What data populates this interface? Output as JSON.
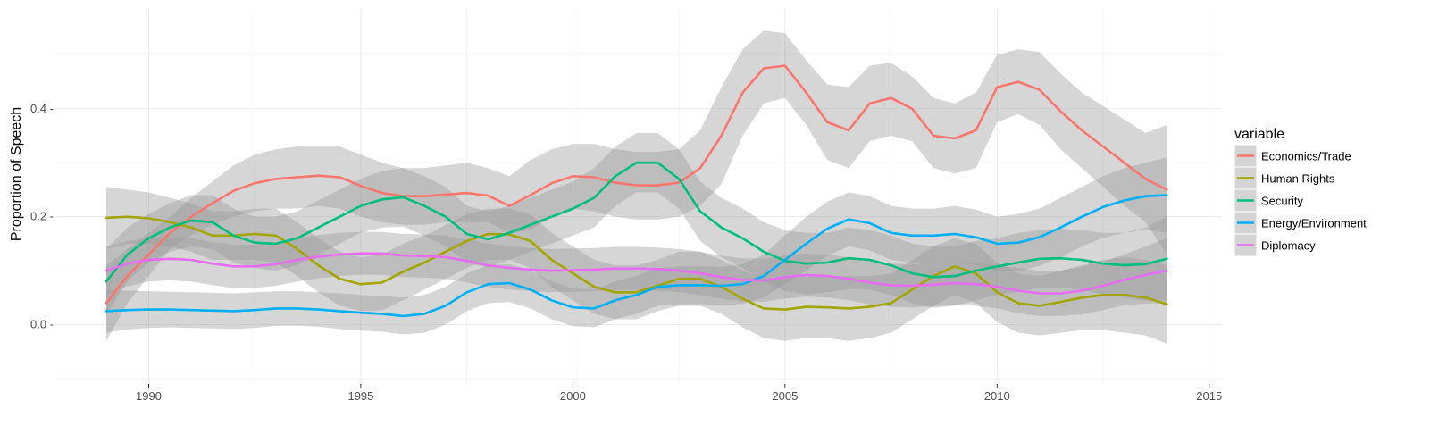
{
  "chart_data": {
    "type": "line",
    "title": "",
    "xlabel": "",
    "ylabel": "Proportion of Speech",
    "xlim": [
      1987.8,
      2015.3
    ],
    "ylim": [
      -0.11,
      0.585
    ],
    "x_ticks": [
      1990,
      1995,
      2000,
      2005,
      2010,
      2015
    ],
    "x_tick_labels": [
      "1990",
      "1995",
      "2000",
      "2005",
      "2010",
      "2015"
    ],
    "y_ticks": [
      0.0,
      0.2,
      0.4
    ],
    "y_tick_labels": [
      "0.0 -",
      "0.2 -",
      "0.4 -"
    ],
    "grid": true,
    "legend": {
      "title": "variable",
      "position": "right"
    },
    "series": [
      {
        "name": "Economics/Trade",
        "color": "#F8766D",
        "x": [
          1989,
          1989.5,
          1990,
          1990.5,
          1991,
          1991.5,
          1992,
          1992.5,
          1993,
          1993.5,
          1994,
          1994.5,
          1995,
          1995.5,
          1996,
          1996.5,
          1997,
          1997.5,
          1998,
          1998.5,
          1999,
          1999.5,
          2000,
          2000.5,
          2001,
          2001.5,
          2002,
          2002.5,
          2003,
          2003.5,
          2004,
          2004.5,
          2005,
          2005.5,
          2006,
          2006.5,
          2007,
          2007.5,
          2008,
          2008.5,
          2009,
          2009.5,
          2010,
          2010.5,
          2011,
          2011.5,
          2012,
          2012.5,
          2013,
          2013.5,
          2014
        ],
        "values": [
          0.04,
          0.09,
          0.13,
          0.17,
          0.2,
          0.225,
          0.248,
          0.262,
          0.27,
          0.273,
          0.276,
          0.273,
          0.257,
          0.244,
          0.238,
          0.238,
          0.241,
          0.244,
          0.239,
          0.22,
          0.24,
          0.262,
          0.275,
          0.273,
          0.263,
          0.258,
          0.258,
          0.263,
          0.29,
          0.35,
          0.43,
          0.475,
          0.48,
          0.43,
          0.375,
          0.36,
          0.41,
          0.42,
          0.4,
          0.35,
          0.345,
          0.36,
          0.44,
          0.45,
          0.435,
          0.395,
          0.36,
          0.33,
          0.3,
          0.27,
          0.25
        ],
        "upper": [
          0.11,
          0.14,
          0.17,
          0.2,
          0.235,
          0.265,
          0.295,
          0.315,
          0.325,
          0.33,
          0.33,
          0.33,
          0.315,
          0.3,
          0.29,
          0.29,
          0.295,
          0.3,
          0.29,
          0.275,
          0.305,
          0.325,
          0.335,
          0.335,
          0.325,
          0.32,
          0.32,
          0.325,
          0.36,
          0.44,
          0.51,
          0.545,
          0.54,
          0.49,
          0.445,
          0.44,
          0.48,
          0.485,
          0.46,
          0.42,
          0.41,
          0.43,
          0.5,
          0.51,
          0.505,
          0.465,
          0.43,
          0.405,
          0.38,
          0.355,
          0.37
        ],
        "lower": [
          -0.03,
          0.04,
          0.09,
          0.14,
          0.165,
          0.185,
          0.2,
          0.21,
          0.215,
          0.215,
          0.22,
          0.215,
          0.2,
          0.19,
          0.185,
          0.185,
          0.19,
          0.19,
          0.19,
          0.17,
          0.175,
          0.2,
          0.215,
          0.21,
          0.2,
          0.195,
          0.195,
          0.2,
          0.22,
          0.26,
          0.35,
          0.41,
          0.42,
          0.37,
          0.305,
          0.29,
          0.34,
          0.35,
          0.34,
          0.29,
          0.28,
          0.29,
          0.375,
          0.39,
          0.37,
          0.325,
          0.29,
          0.255,
          0.22,
          0.19,
          0.13
        ]
      },
      {
        "name": "Human Rights",
        "color": "#A3A500",
        "x": [
          1989,
          1989.5,
          1990,
          1990.5,
          1991,
          1991.5,
          1992,
          1992.5,
          1993,
          1993.5,
          1994,
          1994.5,
          1995,
          1995.5,
          1996,
          1996.5,
          1997,
          1997.5,
          1998,
          1998.5,
          1999,
          1999.5,
          2000,
          2000.5,
          2001,
          2001.5,
          2002,
          2002.5,
          2003,
          2003.5,
          2004,
          2004.5,
          2005,
          2005.5,
          2006,
          2006.5,
          2007,
          2007.5,
          2008,
          2008.5,
          2009,
          2009.5,
          2010,
          2010.5,
          2011,
          2011.5,
          2012,
          2012.5,
          2013,
          2013.5,
          2014
        ],
        "values": [
          0.198,
          0.2,
          0.197,
          0.19,
          0.18,
          0.165,
          0.165,
          0.168,
          0.165,
          0.14,
          0.11,
          0.085,
          0.075,
          0.078,
          0.098,
          0.115,
          0.135,
          0.155,
          0.168,
          0.167,
          0.155,
          0.12,
          0.095,
          0.07,
          0.06,
          0.06,
          0.072,
          0.085,
          0.085,
          0.07,
          0.048,
          0.03,
          0.028,
          0.033,
          0.032,
          0.03,
          0.033,
          0.04,
          0.065,
          0.09,
          0.108,
          0.095,
          0.06,
          0.04,
          0.035,
          0.042,
          0.05,
          0.055,
          0.055,
          0.05,
          0.038
        ],
        "upper": [
          0.255,
          0.25,
          0.245,
          0.235,
          0.225,
          0.21,
          0.21,
          0.215,
          0.215,
          0.19,
          0.16,
          0.135,
          0.125,
          0.13,
          0.15,
          0.165,
          0.185,
          0.205,
          0.215,
          0.215,
          0.205,
          0.17,
          0.145,
          0.12,
          0.11,
          0.11,
          0.12,
          0.135,
          0.135,
          0.12,
          0.1,
          0.085,
          0.085,
          0.09,
          0.09,
          0.09,
          0.09,
          0.095,
          0.12,
          0.145,
          0.16,
          0.15,
          0.115,
          0.095,
          0.09,
          0.1,
          0.11,
          0.12,
          0.125,
          0.12,
          0.11
        ],
        "lower": [
          0.14,
          0.15,
          0.15,
          0.145,
          0.135,
          0.12,
          0.12,
          0.12,
          0.115,
          0.09,
          0.06,
          0.035,
          0.025,
          0.026,
          0.045,
          0.065,
          0.085,
          0.105,
          0.12,
          0.12,
          0.105,
          0.07,
          0.045,
          0.02,
          0.01,
          0.01,
          0.025,
          0.035,
          0.035,
          0.02,
          -0.005,
          -0.025,
          -0.03,
          -0.025,
          -0.025,
          -0.03,
          -0.025,
          -0.015,
          0.01,
          0.035,
          0.055,
          0.04,
          0.005,
          -0.015,
          -0.02,
          -0.015,
          -0.01,
          -0.01,
          -0.015,
          -0.02,
          -0.035
        ]
      },
      {
        "name": "Security",
        "color": "#00BF7D",
        "x": [
          1989,
          1989.5,
          1990,
          1990.5,
          1991,
          1991.5,
          1992,
          1992.5,
          1993,
          1993.5,
          1994,
          1994.5,
          1995,
          1995.5,
          1996,
          1996.5,
          1997,
          1997.5,
          1998,
          1998.5,
          1999,
          1999.5,
          2000,
          2000.5,
          2001,
          2001.5,
          2002,
          2002.5,
          2003,
          2003.5,
          2004,
          2004.5,
          2005,
          2005.5,
          2006,
          2006.5,
          2007,
          2007.5,
          2008,
          2008.5,
          2009,
          2009.5,
          2010,
          2010.5,
          2011,
          2011.5,
          2012,
          2012.5,
          2013,
          2013.5,
          2014
        ],
        "values": [
          0.08,
          0.13,
          0.16,
          0.18,
          0.193,
          0.19,
          0.165,
          0.152,
          0.15,
          0.16,
          0.18,
          0.2,
          0.22,
          0.232,
          0.236,
          0.22,
          0.2,
          0.168,
          0.158,
          0.17,
          0.185,
          0.2,
          0.215,
          0.235,
          0.275,
          0.3,
          0.3,
          0.27,
          0.21,
          0.18,
          0.16,
          0.135,
          0.118,
          0.113,
          0.115,
          0.123,
          0.12,
          0.11,
          0.095,
          0.088,
          0.09,
          0.1,
          0.108,
          0.115,
          0.122,
          0.123,
          0.12,
          0.113,
          0.11,
          0.112,
          0.122
        ],
        "upper": [
          0.14,
          0.18,
          0.205,
          0.225,
          0.24,
          0.24,
          0.215,
          0.2,
          0.2,
          0.21,
          0.23,
          0.25,
          0.27,
          0.285,
          0.29,
          0.275,
          0.255,
          0.22,
          0.21,
          0.22,
          0.235,
          0.25,
          0.265,
          0.29,
          0.33,
          0.355,
          0.355,
          0.325,
          0.265,
          0.235,
          0.215,
          0.19,
          0.175,
          0.17,
          0.17,
          0.18,
          0.175,
          0.165,
          0.15,
          0.145,
          0.145,
          0.155,
          0.16,
          0.17,
          0.175,
          0.178,
          0.175,
          0.17,
          0.17,
          0.18,
          0.2
        ],
        "lower": [
          0.02,
          0.08,
          0.115,
          0.135,
          0.145,
          0.14,
          0.115,
          0.105,
          0.1,
          0.11,
          0.13,
          0.15,
          0.17,
          0.18,
          0.182,
          0.165,
          0.145,
          0.115,
          0.105,
          0.12,
          0.135,
          0.15,
          0.165,
          0.18,
          0.22,
          0.245,
          0.245,
          0.215,
          0.155,
          0.125,
          0.105,
          0.08,
          0.062,
          0.056,
          0.06,
          0.066,
          0.065,
          0.055,
          0.04,
          0.031,
          0.035,
          0.045,
          0.056,
          0.06,
          0.069,
          0.068,
          0.065,
          0.056,
          0.05,
          0.044,
          0.044
        ]
      },
      {
        "name": "Energy/Environment",
        "color": "#00B0F6",
        "x": [
          1989,
          1989.5,
          1990,
          1990.5,
          1991,
          1991.5,
          1992,
          1992.5,
          1993,
          1993.5,
          1994,
          1994.5,
          1995,
          1995.5,
          1996,
          1996.5,
          1997,
          1997.5,
          1998,
          1998.5,
          1999,
          1999.5,
          2000,
          2000.5,
          2001,
          2001.5,
          2002,
          2002.5,
          2003,
          2003.5,
          2004,
          2004.5,
          2005,
          2005.5,
          2006,
          2006.5,
          2007,
          2007.5,
          2008,
          2008.5,
          2009,
          2009.5,
          2010,
          2010.5,
          2011,
          2011.5,
          2012,
          2012.5,
          2013,
          2013.5,
          2014
        ],
        "values": [
          0.025,
          0.027,
          0.028,
          0.028,
          0.027,
          0.026,
          0.025,
          0.027,
          0.03,
          0.03,
          0.028,
          0.025,
          0.022,
          0.02,
          0.016,
          0.02,
          0.035,
          0.06,
          0.075,
          0.077,
          0.065,
          0.045,
          0.032,
          0.03,
          0.045,
          0.055,
          0.07,
          0.073,
          0.073,
          0.072,
          0.075,
          0.09,
          0.12,
          0.15,
          0.178,
          0.195,
          0.188,
          0.17,
          0.165,
          0.165,
          0.168,
          0.162,
          0.15,
          0.152,
          0.162,
          0.18,
          0.2,
          0.218,
          0.23,
          0.238,
          0.24
        ],
        "upper": [
          0.065,
          0.063,
          0.062,
          0.061,
          0.06,
          0.059,
          0.058,
          0.06,
          0.062,
          0.062,
          0.06,
          0.058,
          0.055,
          0.053,
          0.05,
          0.055,
          0.07,
          0.095,
          0.11,
          0.112,
          0.1,
          0.08,
          0.067,
          0.065,
          0.08,
          0.09,
          0.105,
          0.108,
          0.108,
          0.107,
          0.112,
          0.13,
          0.165,
          0.2,
          0.228,
          0.245,
          0.238,
          0.22,
          0.215,
          0.215,
          0.22,
          0.213,
          0.2,
          0.205,
          0.215,
          0.235,
          0.255,
          0.275,
          0.29,
          0.3,
          0.31
        ],
        "lower": [
          -0.015,
          -0.009,
          -0.006,
          -0.005,
          -0.006,
          -0.007,
          -0.008,
          -0.006,
          -0.002,
          -0.002,
          -0.004,
          -0.008,
          -0.011,
          -0.013,
          -0.018,
          -0.015,
          0,
          0.025,
          0.04,
          0.042,
          0.03,
          0.01,
          -0.003,
          -0.005,
          0.01,
          0.02,
          0.035,
          0.038,
          0.038,
          0.037,
          0.038,
          0.05,
          0.075,
          0.1,
          0.128,
          0.145,
          0.138,
          0.12,
          0.115,
          0.115,
          0.116,
          0.111,
          0.1,
          0.099,
          0.109,
          0.125,
          0.145,
          0.161,
          0.17,
          0.176,
          0.17
        ]
      },
      {
        "name": "Diplomacy",
        "color": "#E76BF3",
        "x": [
          1989,
          1989.5,
          1990,
          1990.5,
          1991,
          1991.5,
          1992,
          1992.5,
          1993,
          1993.5,
          1994,
          1994.5,
          1995,
          1995.5,
          1996,
          1996.5,
          1997,
          1997.5,
          1998,
          1998.5,
          1999,
          1999.5,
          2000,
          2000.5,
          2001,
          2001.5,
          2002,
          2002.5,
          2003,
          2003.5,
          2004,
          2004.5,
          2005,
          2005.5,
          2006,
          2006.5,
          2007,
          2007.5,
          2008,
          2008.5,
          2009,
          2009.5,
          2010,
          2010.5,
          2011,
          2011.5,
          2012,
          2012.5,
          2013,
          2013.5,
          2014
        ],
        "values": [
          0.1,
          0.113,
          0.12,
          0.122,
          0.12,
          0.113,
          0.108,
          0.108,
          0.112,
          0.12,
          0.126,
          0.13,
          0.132,
          0.132,
          0.128,
          0.127,
          0.125,
          0.118,
          0.11,
          0.105,
          0.102,
          0.1,
          0.101,
          0.102,
          0.104,
          0.104,
          0.103,
          0.1,
          0.095,
          0.088,
          0.083,
          0.082,
          0.088,
          0.092,
          0.09,
          0.085,
          0.078,
          0.073,
          0.072,
          0.074,
          0.077,
          0.075,
          0.07,
          0.063,
          0.058,
          0.058,
          0.063,
          0.072,
          0.083,
          0.092,
          0.1
        ],
        "upper": [
          0.145,
          0.155,
          0.16,
          0.162,
          0.16,
          0.153,
          0.148,
          0.148,
          0.152,
          0.16,
          0.166,
          0.17,
          0.172,
          0.172,
          0.168,
          0.167,
          0.165,
          0.158,
          0.15,
          0.145,
          0.142,
          0.14,
          0.141,
          0.142,
          0.144,
          0.144,
          0.143,
          0.14,
          0.135,
          0.128,
          0.123,
          0.122,
          0.128,
          0.132,
          0.13,
          0.125,
          0.118,
          0.113,
          0.112,
          0.114,
          0.117,
          0.115,
          0.11,
          0.105,
          0.1,
          0.1,
          0.107,
          0.117,
          0.13,
          0.145,
          0.16
        ],
        "lower": [
          0.055,
          0.071,
          0.08,
          0.082,
          0.08,
          0.073,
          0.068,
          0.068,
          0.072,
          0.08,
          0.086,
          0.09,
          0.092,
          0.092,
          0.088,
          0.087,
          0.085,
          0.078,
          0.07,
          0.065,
          0.062,
          0.06,
          0.061,
          0.062,
          0.064,
          0.064,
          0.063,
          0.06,
          0.055,
          0.048,
          0.043,
          0.042,
          0.048,
          0.052,
          0.05,
          0.045,
          0.038,
          0.033,
          0.032,
          0.034,
          0.037,
          0.035,
          0.03,
          0.021,
          0.016,
          0.016,
          0.019,
          0.027,
          0.036,
          0.039,
          0.04
        ]
      }
    ]
  }
}
